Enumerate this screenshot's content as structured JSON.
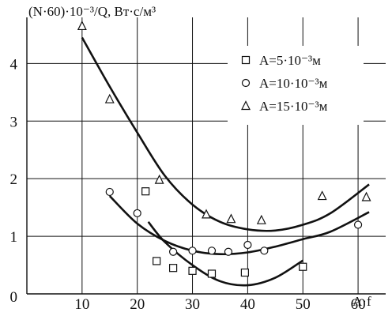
{
  "chart_data": {
    "type": "scatter",
    "title": "",
    "ylabel": "(N·60)·10⁻³/Q, Вт·с/м³",
    "xlabel": "A·f",
    "xlim": [
      0,
      65
    ],
    "ylim": [
      0,
      4.8
    ],
    "x_ticks": [
      10,
      20,
      30,
      40,
      50,
      60
    ],
    "y_ticks": [
      0,
      1,
      2,
      3,
      4
    ],
    "grid": true,
    "legend_placement": "top-right",
    "series": [
      {
        "name": "A=5·10⁻³м",
        "marker": "square",
        "points": [
          [
            21.5,
            1.78
          ],
          [
            23.5,
            0.57
          ],
          [
            26.5,
            0.45
          ],
          [
            30,
            0.4
          ],
          [
            33.5,
            0.35
          ],
          [
            39.5,
            0.37
          ],
          [
            50,
            0.47
          ]
        ],
        "fit": [
          [
            22,
            1.25
          ],
          [
            25,
            0.9
          ],
          [
            30,
            0.5
          ],
          [
            35,
            0.22
          ],
          [
            40,
            0.15
          ],
          [
            45,
            0.28
          ],
          [
            50,
            0.58
          ]
        ]
      },
      {
        "name": "A=10·10⁻³м",
        "marker": "circle",
        "points": [
          [
            15,
            1.77
          ],
          [
            20,
            1.4
          ],
          [
            26.5,
            0.73
          ],
          [
            30,
            0.75
          ],
          [
            33.5,
            0.75
          ],
          [
            36.5,
            0.73
          ],
          [
            40,
            0.85
          ],
          [
            43,
            0.75
          ],
          [
            60,
            1.2
          ]
        ],
        "fit": [
          [
            15,
            1.7
          ],
          [
            20,
            1.22
          ],
          [
            25,
            0.92
          ],
          [
            30,
            0.75
          ],
          [
            35,
            0.69
          ],
          [
            40,
            0.72
          ],
          [
            45,
            0.82
          ],
          [
            50,
            0.95
          ],
          [
            55,
            1.08
          ],
          [
            62,
            1.42
          ]
        ]
      },
      {
        "name": "A=15·10⁻³м",
        "marker": "triangle",
        "points": [
          [
            10,
            4.65
          ],
          [
            15,
            3.38
          ],
          [
            24,
            1.98
          ],
          [
            32.5,
            1.38
          ],
          [
            37,
            1.3
          ],
          [
            42.5,
            1.28
          ],
          [
            53.5,
            1.7
          ],
          [
            61.5,
            1.68
          ]
        ],
        "fit": [
          [
            10,
            4.45
          ],
          [
            15,
            3.6
          ],
          [
            20,
            2.8
          ],
          [
            25,
            2.05
          ],
          [
            30,
            1.55
          ],
          [
            35,
            1.25
          ],
          [
            40,
            1.12
          ],
          [
            45,
            1.1
          ],
          [
            50,
            1.2
          ],
          [
            55,
            1.4
          ],
          [
            62,
            1.9
          ]
        ]
      }
    ]
  }
}
